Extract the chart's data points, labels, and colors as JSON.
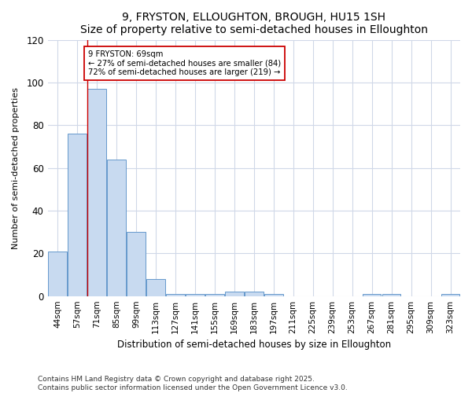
{
  "title": "9, FRYSTON, ELLOUGHTON, BROUGH, HU15 1SH",
  "subtitle": "Size of property relative to semi-detached houses in Elloughton",
  "xlabel": "Distribution of semi-detached houses by size in Elloughton",
  "ylabel": "Number of semi-detached properties",
  "categories": [
    "44sqm",
    "57sqm",
    "71sqm",
    "85sqm",
    "99sqm",
    "113sqm",
    "127sqm",
    "141sqm",
    "155sqm",
    "169sqm",
    "183sqm",
    "197sqm",
    "211sqm",
    "225sqm",
    "239sqm",
    "253sqm",
    "267sqm",
    "281sqm",
    "295sqm",
    "309sqm",
    "323sqm"
  ],
  "values": [
    21,
    76,
    97,
    64,
    30,
    8,
    1,
    1,
    1,
    2,
    2,
    1,
    0,
    0,
    0,
    0,
    1,
    1,
    0,
    0,
    1
  ],
  "bar_color": "#c8daf0",
  "bar_edge_color": "#6699cc",
  "vline_color": "#cc0000",
  "annotation_line1": "9 FRYSTON: 69sqm",
  "annotation_line2": "← 27% of semi-detached houses are smaller (84)",
  "annotation_line3": "72% of semi-detached houses are larger (219) →",
  "annotation_box_color": "#ffffff",
  "annotation_box_edge": "#cc0000",
  "ylim": [
    0,
    120
  ],
  "yticks": [
    0,
    20,
    40,
    60,
    80,
    100,
    120
  ],
  "footer": "Contains HM Land Registry data © Crown copyright and database right 2025.\nContains public sector information licensed under the Open Government Licence v3.0.",
  "bg_color": "#ffffff",
  "plot_bg_color": "#ffffff",
  "grid_color": "#d0d8e8"
}
